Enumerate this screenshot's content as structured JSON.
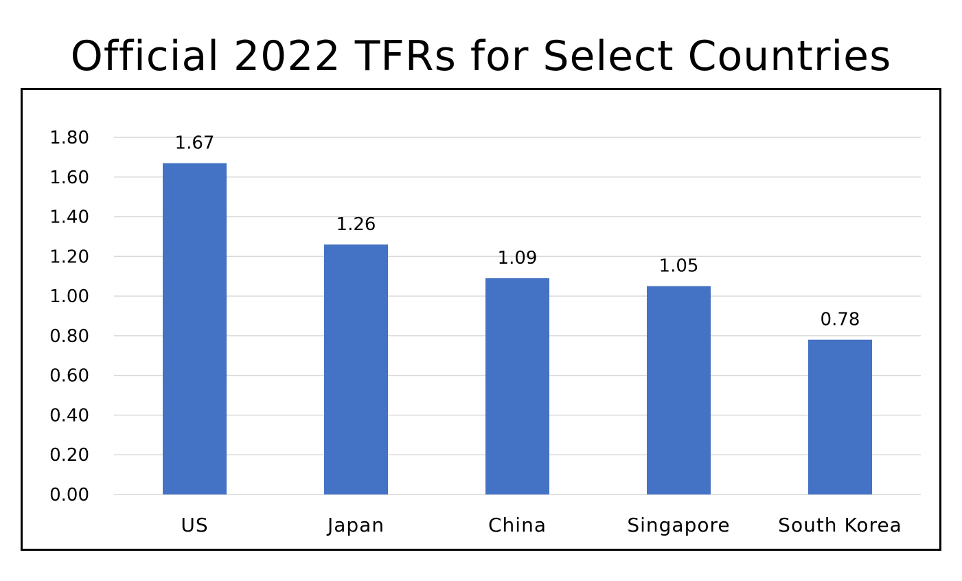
{
  "chart_data": {
    "type": "bar",
    "title": "Official 2022 TFRs for Select Countries",
    "xlabel": "",
    "ylabel": "",
    "categories": [
      "US",
      "Japan",
      "China",
      "Singapore",
      "South Korea"
    ],
    "values": [
      1.67,
      1.26,
      1.09,
      1.05,
      0.78
    ],
    "data_labels": [
      "1.67",
      "1.26",
      "1.09",
      "1.05",
      "0.78"
    ],
    "ylim": [
      0,
      1.8
    ],
    "yticks": [
      "0.00",
      "0.20",
      "0.40",
      "0.60",
      "0.80",
      "1.00",
      "1.20",
      "1.40",
      "1.60",
      "1.80"
    ],
    "grid": true,
    "legend": "none",
    "bar_color": "#4472C4",
    "grid_color": "#D9D9D9"
  }
}
